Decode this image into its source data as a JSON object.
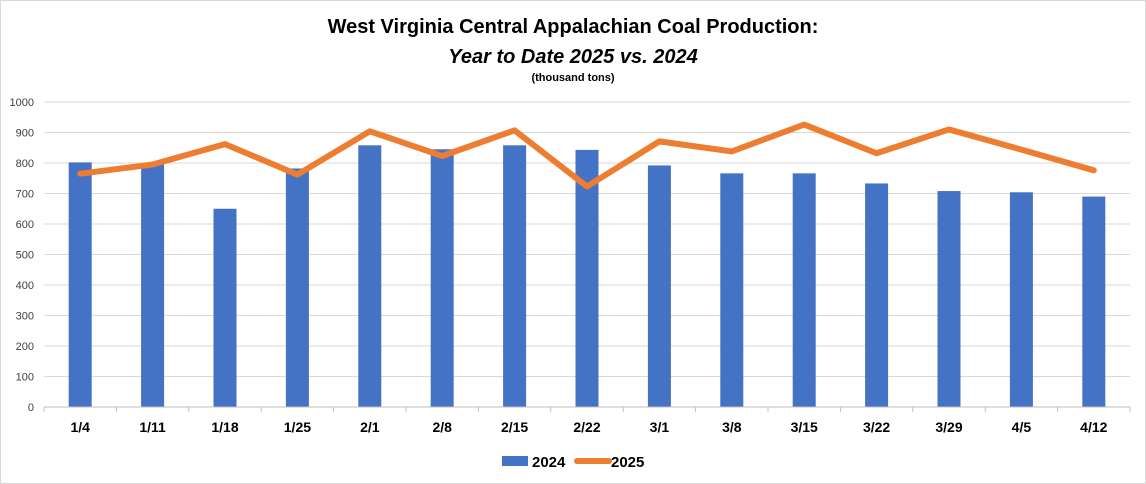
{
  "chart_data": {
    "type": "bar",
    "title": "West Virginia Central Appalachian Coal Production:",
    "subtitle": "Year to Date 2025 vs. 2024",
    "unit_note": "(thousand tons)",
    "categories": [
      "1/4",
      "1/11",
      "1/18",
      "1/25",
      "2/1",
      "2/8",
      "2/15",
      "2/22",
      "3/1",
      "3/8",
      "3/15",
      "3/22",
      "3/29",
      "4/5",
      "4/12"
    ],
    "yticks": [
      "0",
      "100",
      "200",
      "300",
      "400",
      "500",
      "600",
      "700",
      "800",
      "900",
      "1000"
    ],
    "ylim": [
      0,
      1000
    ],
    "grid": true,
    "legend_position": "bottom",
    "series": [
      {
        "name": "2024",
        "type": "bar",
        "color": "#4472c4",
        "values": [
          802,
          796,
          650,
          782,
          858,
          845,
          858,
          843,
          792,
          766,
          766,
          733,
          708,
          704,
          690
        ]
      },
      {
        "name": "2025",
        "type": "line",
        "color": "#ed7d31",
        "values": [
          765,
          795,
          862,
          762,
          904,
          823,
          907,
          723,
          871,
          838,
          926,
          832,
          910,
          844,
          776
        ]
      }
    ]
  }
}
